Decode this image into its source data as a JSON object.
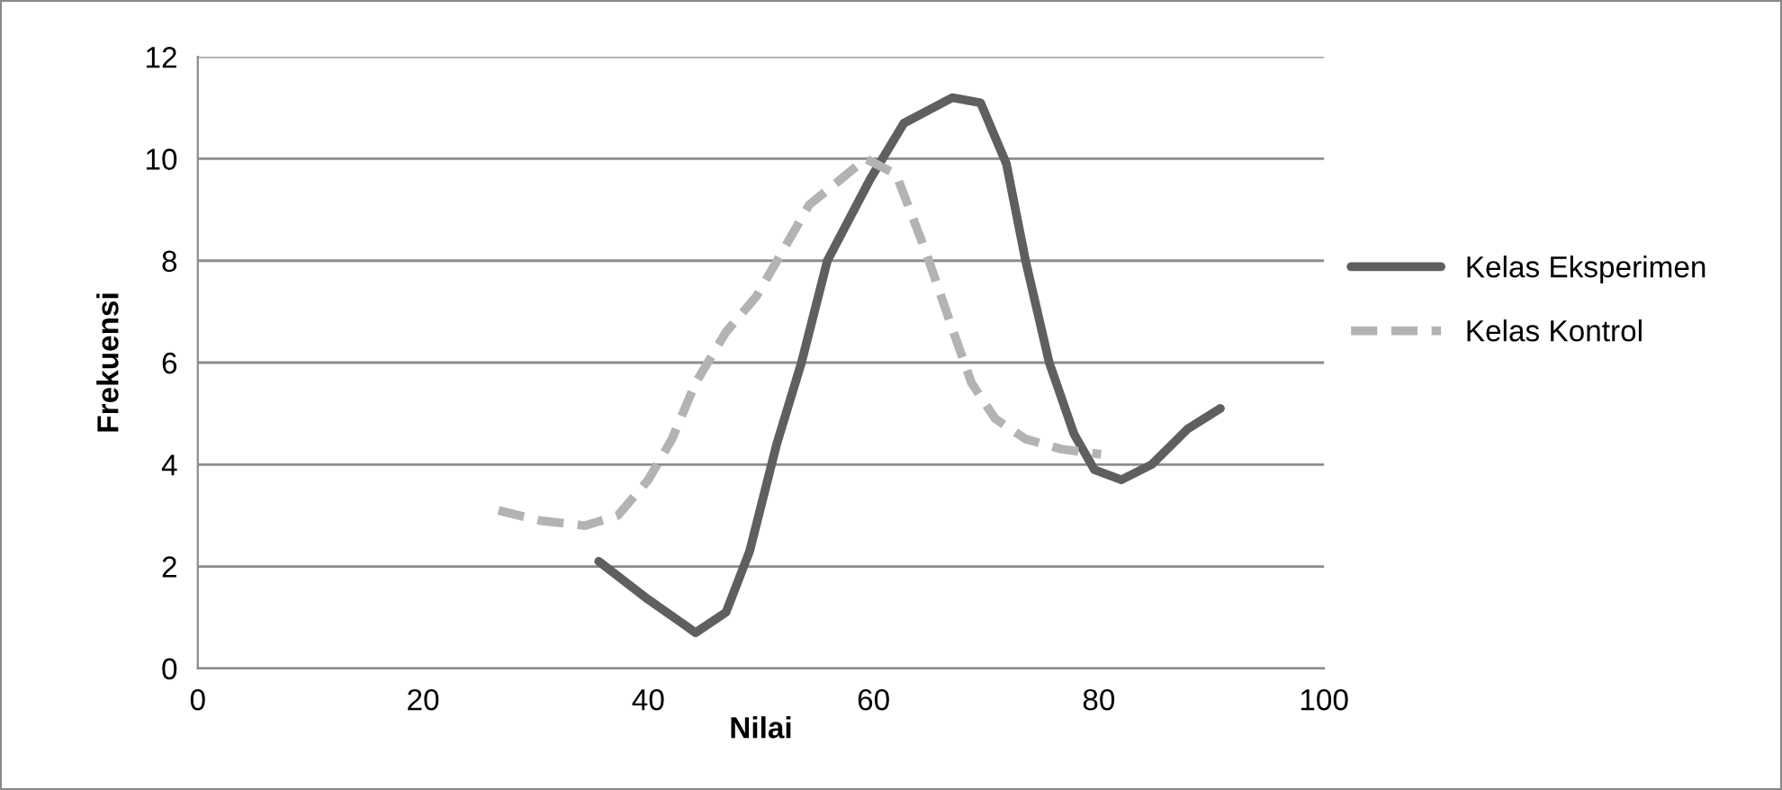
{
  "chart_data": {
    "type": "line",
    "xlabel": "Nilai",
    "ylabel": "Frekuensi",
    "xlim": [
      0,
      100
    ],
    "xticks": [
      0,
      20,
      40,
      60,
      80,
      100
    ],
    "ylim": [
      0,
      12
    ],
    "yticks": [
      0,
      2,
      4,
      6,
      8,
      10,
      12
    ],
    "grid": "y",
    "legend": "right",
    "marker": "none",
    "series": [
      {
        "name": "Kelas Eksperimen",
        "color": "#5f5f5f",
        "line_style": "solid",
        "x": [
          35.6,
          40,
          44.2,
          46.9,
          49,
          51.4,
          53.6,
          55.9,
          59.7,
          62.7,
          67,
          69.5,
          71.8,
          73.5,
          75.6,
          77.8,
          79.6,
          82,
          84.7,
          87.9,
          90.8
        ],
        "values": [
          2.1,
          1.35,
          0.7,
          1.1,
          2.3,
          4.4,
          6,
          8,
          9.6,
          10.7,
          11.2,
          11.1,
          9.9,
          8,
          6,
          4.6,
          3.9,
          3.7,
          4,
          4.7,
          5.1
        ]
      },
      {
        "name": "Kelas Kontrol",
        "color": "#b3b3b3",
        "line_style": "dashed",
        "x": [
          26.7,
          30.4,
          34.4,
          37.3,
          40,
          42.1,
          44.2,
          46.9,
          49.6,
          51.7,
          54.3,
          57.1,
          59.3,
          62,
          64.6,
          67.1,
          68.7,
          70.8,
          73.5,
          76.7,
          80.2
        ],
        "values": [
          3.1,
          2.9,
          2.8,
          3,
          3.7,
          4.5,
          5.6,
          6.6,
          7.3,
          8.1,
          9.1,
          9.6,
          10,
          9.7,
          8.2,
          6.6,
          5.6,
          4.9,
          4.5,
          4.3,
          4.2
        ]
      }
    ]
  }
}
